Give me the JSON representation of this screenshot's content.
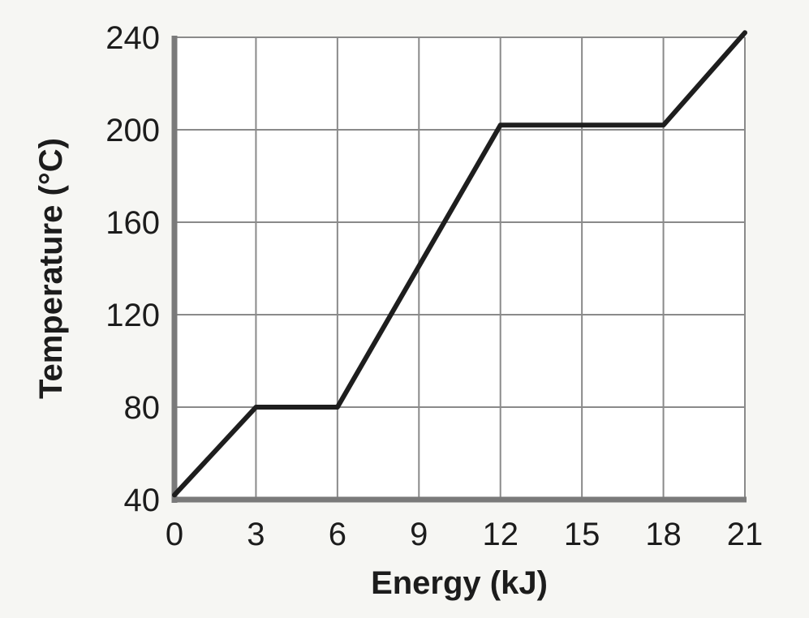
{
  "chart_data": {
    "type": "line",
    "xlabel": "Energy (kJ)",
    "ylabel": "Temperature (°C)",
    "xlim": [
      0,
      21
    ],
    "ylim": [
      40,
      240
    ],
    "x_ticks": [
      0,
      3,
      6,
      9,
      12,
      15,
      18,
      21
    ],
    "y_ticks": [
      40,
      80,
      120,
      160,
      200,
      240
    ],
    "x_tick_labels": [
      "0",
      "3",
      "6",
      "9",
      "12",
      "15",
      "18",
      "21"
    ],
    "y_tick_labels": [
      "40",
      "80",
      "120",
      "160",
      "200",
      "240"
    ],
    "grid": true,
    "series": [
      {
        "x": [
          0,
          3,
          6,
          12,
          18,
          21
        ],
        "y": [
          42,
          80,
          80,
          202,
          202,
          242
        ]
      }
    ]
  },
  "colors": {
    "line": "#1e1e1e",
    "grid": "#8a8a8a",
    "axis": "#7a7a7a",
    "plot_bg": "#ffffff",
    "page_bg": "#f6f6f3"
  }
}
